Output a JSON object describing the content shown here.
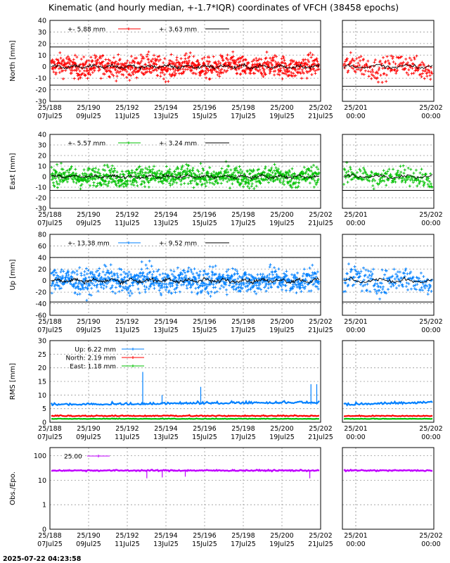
{
  "title": "Kinematic (and hourly median, +-1.7*IQR) coordinates of VFCH (38458 epochs)",
  "timestamp": "2025-07-22 04:23:58",
  "colors": {
    "north": "#ff0000",
    "east": "#00c000",
    "up": "#0080ff",
    "obs": "#c000ff",
    "median": "#000000"
  },
  "x_ticks_main": [
    {
      "top": "25/188",
      "bottom": "07Jul25"
    },
    {
      "top": "25/190",
      "bottom": "09Jul25"
    },
    {
      "top": "25/192",
      "bottom": "11Jul25"
    },
    {
      "top": "25/194",
      "bottom": "13Jul25"
    },
    {
      "top": "25/196",
      "bottom": "15Jul25"
    },
    {
      "top": "25/198",
      "bottom": "17Jul25"
    },
    {
      "top": "25/200",
      "bottom": "19Jul25"
    },
    {
      "top": "25/202",
      "bottom": "21Jul25"
    }
  ],
  "x_ticks_zoom": [
    {
      "top": "25/201",
      "bottom": "00:00"
    },
    {
      "top": "25/202",
      "bottom": "00:00"
    }
  ],
  "chart_data": [
    {
      "type": "scatter",
      "ylabel": "North [mm]",
      "ylim": [
        -30,
        40
      ],
      "yticks": [
        -30,
        -20,
        -10,
        0,
        10,
        20,
        30,
        40
      ],
      "legend": [
        {
          "label": "+-   5.88 mm",
          "color": "#ff0000"
        },
        {
          "label": "+-   3.63 mm",
          "color": "#000000"
        }
      ],
      "series": [
        {
          "name": "+-   5.88 mm",
          "values": []
        },
        {
          "name": "+-   3.63 mm",
          "values": []
        }
      ],
      "bounds": [
        17,
        -16
      ],
      "gaps": [
        [
          25.44,
          25.54
        ]
      ],
      "zoom_bounds": [
        17,
        -17
      ]
    },
    {
      "type": "scatter",
      "ylabel": "East [mm]",
      "ylim": [
        -30,
        40
      ],
      "yticks": [
        -30,
        -20,
        -10,
        0,
        10,
        20,
        30,
        40
      ],
      "legend": [
        {
          "label": "+-   5.57 mm",
          "color": "#00c000"
        },
        {
          "label": "+-   3.24 mm",
          "color": "#000000"
        }
      ],
      "series": [
        {
          "name": "+-   5.57 mm",
          "values": []
        },
        {
          "name": "+-   3.24 mm",
          "values": []
        }
      ],
      "bounds": [
        14,
        -13
      ],
      "gaps": [
        [
          25.48,
          25.52
        ]
      ],
      "zoom_bounds": [
        14,
        -13
      ]
    },
    {
      "type": "scatter",
      "ylabel": "Up [mm]",
      "ylim": [
        -60,
        80
      ],
      "yticks": [
        -60,
        -40,
        -20,
        0,
        20,
        40,
        60,
        80
      ],
      "legend": [
        {
          "label": "+-  13.38 mm",
          "color": "#0080ff"
        },
        {
          "label": "+-   9.52 mm",
          "color": "#000000"
        }
      ],
      "series": [
        {
          "name": "+-  13.38 mm",
          "values": []
        },
        {
          "name": "+-   9.52 mm",
          "values": []
        }
      ],
      "bounds": [
        40,
        -37
      ],
      "gaps": [
        [
          25.42,
          25.52
        ]
      ],
      "zoom_bounds": [
        40,
        -37
      ]
    },
    {
      "type": "line",
      "ylabel": "RMS [mm]",
      "ylim": [
        0,
        30
      ],
      "yticks": [
        0,
        5,
        10,
        15,
        20,
        25,
        30
      ],
      "legend": [
        {
          "label": "Up:   6.22 mm",
          "color": "#0080ff"
        },
        {
          "label": "North:   2.19 mm",
          "color": "#ff0000"
        },
        {
          "label": "East:   1.18 mm",
          "color": "#00c000"
        }
      ],
      "series": [
        {
          "name": "Up",
          "values": [
            6.22
          ]
        },
        {
          "name": "North",
          "values": [
            2.19
          ]
        },
        {
          "name": "East",
          "values": [
            1.18
          ]
        }
      ],
      "spikes": [
        {
          "day": 192.8,
          "up": 18.5
        },
        {
          "day": 193.8,
          "up": 10
        },
        {
          "day": 195.8,
          "up": 13
        },
        {
          "day": 201.8,
          "up": 14
        },
        {
          "day": 201.5,
          "up": 14
        }
      ]
    },
    {
      "type": "line",
      "ylabel": "Obs./Epo.",
      "yscale": "log",
      "ylim": [
        0,
        150
      ],
      "yticks_labels": [
        "0",
        "1",
        "10",
        "100"
      ],
      "legend": [
        {
          "label": "25.00",
          "color": "#c000ff"
        }
      ],
      "series": [
        {
          "name": "25.00",
          "values": [
            25.0
          ]
        }
      ]
    }
  ]
}
